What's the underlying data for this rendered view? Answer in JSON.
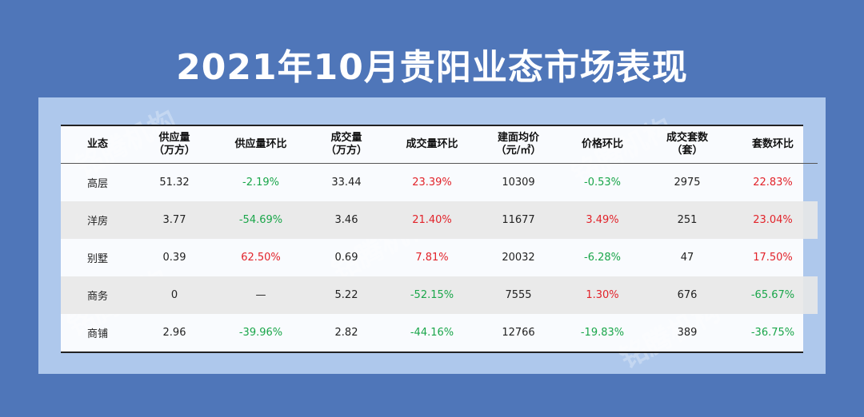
{
  "title": "2021年10月贵阳业态市场表现",
  "watermark": "铭腾机构",
  "colors": {
    "background": "#4f76b9",
    "panel": "#aec8ec",
    "negative": "#1aa64a",
    "positive": "#e2232a"
  },
  "table": {
    "headers": [
      "业态",
      "供应量\n（万方）",
      "供应量环比",
      "成交量\n（万方）",
      "成交量环比",
      "建面均价\n（元/㎡）",
      "价格环比",
      "成交套数\n（套）",
      "套数环比"
    ],
    "rows": [
      [
        "高层",
        "51.32",
        "-2.19%",
        "33.44",
        "23.39%",
        "10309",
        "-0.53%",
        "2975",
        "22.83%"
      ],
      [
        "洋房",
        "3.77",
        "-54.69%",
        "3.46",
        "21.40%",
        "11677",
        "3.49%",
        "251",
        "23.04%"
      ],
      [
        "别墅",
        "0.39",
        "62.50%",
        "0.69",
        "7.81%",
        "20032",
        "-6.28%",
        "47",
        "17.50%"
      ],
      [
        "商务",
        "0",
        "—",
        "5.22",
        "-52.15%",
        "7555",
        "1.30%",
        "676",
        "-65.67%"
      ],
      [
        "商铺",
        "2.96",
        "-39.96%",
        "2.82",
        "-44.16%",
        "12766",
        "-19.83%",
        "389",
        "-36.75%"
      ]
    ]
  }
}
